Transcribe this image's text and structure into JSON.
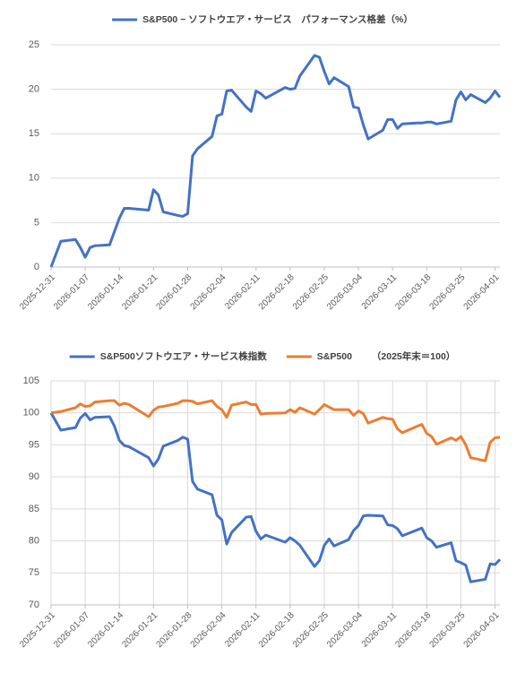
{
  "chart_data": [
    {
      "type": "line",
      "x": [
        "2025-12-31",
        "2026-01-02",
        "2026-01-05",
        "2026-01-06",
        "2026-01-07",
        "2026-01-08",
        "2026-01-09",
        "2026-01-12",
        "2026-01-13",
        "2026-01-14",
        "2026-01-15",
        "2026-01-16",
        "2026-01-20",
        "2026-01-21",
        "2026-01-22",
        "2026-01-23",
        "2026-01-26",
        "2026-01-27",
        "2026-01-28",
        "2026-01-29",
        "2026-01-30",
        "2026-02-02",
        "2026-02-03",
        "2026-02-04",
        "2026-02-05",
        "2026-02-06",
        "2026-02-09",
        "2026-02-10",
        "2026-02-11",
        "2026-02-12",
        "2026-02-13",
        "2026-02-17",
        "2026-02-18",
        "2026-02-19",
        "2026-02-20",
        "2026-02-23",
        "2026-02-24",
        "2026-02-25",
        "2026-02-26",
        "2026-02-27",
        "2026-03-02",
        "2026-03-03",
        "2026-03-04",
        "2026-03-05",
        "2026-03-06",
        "2026-03-09",
        "2026-03-10",
        "2026-03-11",
        "2026-03-12",
        "2026-03-13",
        "2026-03-16",
        "2026-03-17",
        "2026-03-18",
        "2026-03-19",
        "2026-03-20",
        "2026-03-23",
        "2026-03-24",
        "2026-03-25",
        "2026-03-26",
        "2026-03-27",
        "2026-03-30",
        "2026-03-31",
        "2026-04-01",
        "2026-04-02"
      ],
      "series": [
        {
          "name": "S&P500 − ソフトウエア・サービス　パフォーマンス格差（%）",
          "color": "#4472c4",
          "values": [
            0,
            2.9,
            3.1,
            2.2,
            1.1,
            2.2,
            2.4,
            2.5,
            4.0,
            5.5,
            6.6,
            6.6,
            6.4,
            8.7,
            8.1,
            6.2,
            5.8,
            5.7,
            6.0,
            12.5,
            13.3,
            14.7,
            17.0,
            17.2,
            19.8,
            19.9,
            18.0,
            17.5,
            19.8,
            19.5,
            19.0,
            20.2,
            20.0,
            20.1,
            21.5,
            23.8,
            23.6,
            22.0,
            20.6,
            21.3,
            20.3,
            18.0,
            17.9,
            16.0,
            14.4,
            15.4,
            16.6,
            16.6,
            15.6,
            16.1,
            16.2,
            16.2,
            16.3,
            16.3,
            16.1,
            16.4,
            18.8,
            19.7,
            18.8,
            19.4,
            18.5,
            19.0,
            19.8,
            19.1
          ]
        }
      ],
      "xlim": [
        "2025-12-31",
        "2026-04-02"
      ],
      "xticks": [
        "2025-12-31",
        "2026-01-07",
        "2026-01-14",
        "2026-01-21",
        "2026-01-28",
        "2026-02-04",
        "2026-02-11",
        "2026-02-18",
        "2026-02-25",
        "2026-03-04",
        "2026-03-11",
        "2026-03-18",
        "2026-03-25",
        "2026-04-01"
      ],
      "ylim": [
        0,
        25
      ],
      "yticks": [
        0,
        5,
        10,
        15,
        20,
        25
      ],
      "grid": true,
      "legend": "top"
    },
    {
      "type": "line",
      "note": "（2025年末＝100）",
      "x": [
        "2025-12-31",
        "2026-01-02",
        "2026-01-05",
        "2026-01-06",
        "2026-01-07",
        "2026-01-08",
        "2026-01-09",
        "2026-01-12",
        "2026-01-13",
        "2026-01-14",
        "2026-01-15",
        "2026-01-16",
        "2026-01-20",
        "2026-01-21",
        "2026-01-22",
        "2026-01-23",
        "2026-01-26",
        "2026-01-27",
        "2026-01-28",
        "2026-01-29",
        "2026-01-30",
        "2026-02-02",
        "2026-02-03",
        "2026-02-04",
        "2026-02-05",
        "2026-02-06",
        "2026-02-09",
        "2026-02-10",
        "2026-02-11",
        "2026-02-12",
        "2026-02-13",
        "2026-02-17",
        "2026-02-18",
        "2026-02-19",
        "2026-02-20",
        "2026-02-23",
        "2026-02-24",
        "2026-02-25",
        "2026-02-26",
        "2026-02-27",
        "2026-03-02",
        "2026-03-03",
        "2026-03-04",
        "2026-03-05",
        "2026-03-06",
        "2026-03-09",
        "2026-03-10",
        "2026-03-11",
        "2026-03-12",
        "2026-03-13",
        "2026-03-16",
        "2026-03-17",
        "2026-03-18",
        "2026-03-19",
        "2026-03-20",
        "2026-03-23",
        "2026-03-24",
        "2026-03-25",
        "2026-03-26",
        "2026-03-27",
        "2026-03-30",
        "2026-03-31",
        "2026-04-01",
        "2026-04-02"
      ],
      "series": [
        {
          "name": "S&P500ソフトウエア・サービス株指数",
          "color": "#4472c4",
          "values": [
            100,
            97.3,
            97.7,
            99.2,
            99.9,
            98.9,
            99.3,
            99.4,
            97.9,
            95.7,
            94.9,
            94.7,
            93.0,
            91.7,
            92.8,
            94.8,
            95.7,
            96.2,
            95.9,
            89.3,
            88.1,
            87.2,
            84.0,
            83.3,
            79.5,
            81.3,
            83.7,
            83.8,
            81.5,
            80.3,
            80.9,
            79.8,
            80.5,
            80.0,
            79.3,
            76.0,
            76.9,
            79.3,
            80.3,
            79.2,
            80.2,
            81.6,
            82.4,
            83.9,
            84.0,
            83.9,
            82.5,
            82.4,
            81.9,
            80.8,
            81.7,
            82.0,
            80.5,
            80.0,
            79.0,
            79.7,
            76.9,
            76.6,
            76.2,
            73.6,
            74.0,
            76.4,
            76.3,
            77.1
          ]
        },
        {
          "name": "S&P500",
          "color": "#ed7d31",
          "values": [
            100,
            100.2,
            100.8,
            101.4,
            101.0,
            101.1,
            101.7,
            101.9,
            101.9,
            101.2,
            101.5,
            101.3,
            99.4,
            100.4,
            100.9,
            101.0,
            101.5,
            101.9,
            101.9,
            101.8,
            101.4,
            101.9,
            101.0,
            100.5,
            99.3,
            101.2,
            101.7,
            101.3,
            101.3,
            99.8,
            99.9,
            100.0,
            100.5,
            100.1,
            100.8,
            99.8,
            100.5,
            101.3,
            100.9,
            100.5,
            100.5,
            99.6,
            100.3,
            99.9,
            98.4,
            99.3,
            99.1,
            99.0,
            97.5,
            96.9,
            97.9,
            98.2,
            96.8,
            96.3,
            95.1,
            96.1,
            95.7,
            96.3,
            95.0,
            93.0,
            92.5,
            95.4,
            96.1,
            96.2
          ]
        }
      ],
      "xlim": [
        "2025-12-31",
        "2026-04-02"
      ],
      "xticks": [
        "2025-12-31",
        "2026-01-07",
        "2026-01-14",
        "2026-01-21",
        "2026-01-28",
        "2026-02-04",
        "2026-02-11",
        "2026-02-18",
        "2026-02-25",
        "2026-03-04",
        "2026-03-11",
        "2026-03-18",
        "2026-03-25",
        "2026-04-01"
      ],
      "ylim": [
        70,
        105
      ],
      "yticks": [
        70,
        75,
        80,
        85,
        90,
        95,
        100,
        105
      ],
      "grid": true,
      "xgrid": true,
      "legend": "top"
    }
  ]
}
